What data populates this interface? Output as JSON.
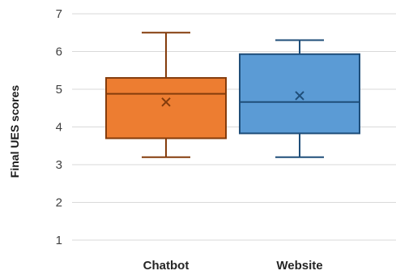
{
  "chart_data": {
    "type": "box",
    "ylabel": "Final UES scores",
    "ylim": [
      1,
      7
    ],
    "yticks": [
      1,
      2,
      3,
      4,
      5,
      6,
      7
    ],
    "grid": true,
    "categories": [
      "Chatbot",
      "Website"
    ],
    "boxes": [
      {
        "name": "Chatbot",
        "min": 3.2,
        "q1": 3.7,
        "median": 4.88,
        "q3": 5.3,
        "max": 6.5,
        "mean": 4.66,
        "fill": "#ED7D31",
        "stroke": "#843C0C"
      },
      {
        "name": "Website",
        "min": 3.2,
        "q1": 3.83,
        "median": 4.66,
        "q3": 5.93,
        "max": 6.3,
        "mean": 4.83,
        "fill": "#5B9BD5",
        "stroke": "#1F4E79"
      }
    ]
  }
}
